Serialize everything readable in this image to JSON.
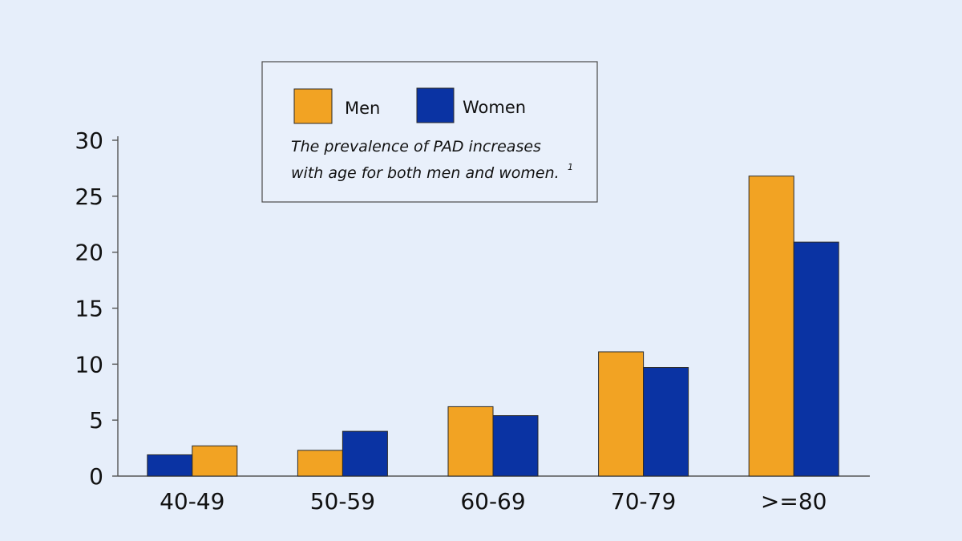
{
  "chart_data": {
    "type": "bar",
    "categories": [
      "40-49",
      "50-59",
      "60-69",
      "70-79",
      ">=80"
    ],
    "series": [
      {
        "name": "Men",
        "color": "#f2a323",
        "values": [
          2.7,
          2.3,
          6.2,
          11.1,
          26.8
        ]
      },
      {
        "name": "Women",
        "color": "#0a33a3",
        "values": [
          1.9,
          4.0,
          5.4,
          9.7,
          20.9
        ]
      }
    ],
    "series_order_by_category": [
      [
        "Women",
        "Men"
      ],
      [
        "Men",
        "Women"
      ],
      [
        "Men",
        "Women"
      ],
      [
        "Men",
        "Women"
      ],
      [
        "Men",
        "Women"
      ]
    ],
    "yticks": [
      0,
      5,
      10,
      15,
      20,
      25,
      30
    ],
    "ylim": [
      0,
      30
    ],
    "grid": false,
    "legend": {
      "placement": "top-center",
      "items": [
        "Men",
        "Women"
      ]
    },
    "annotation": {
      "lines": [
        "The prevalence of PAD increases",
        "with age for both men and women."
      ],
      "footnote": "1"
    }
  }
}
